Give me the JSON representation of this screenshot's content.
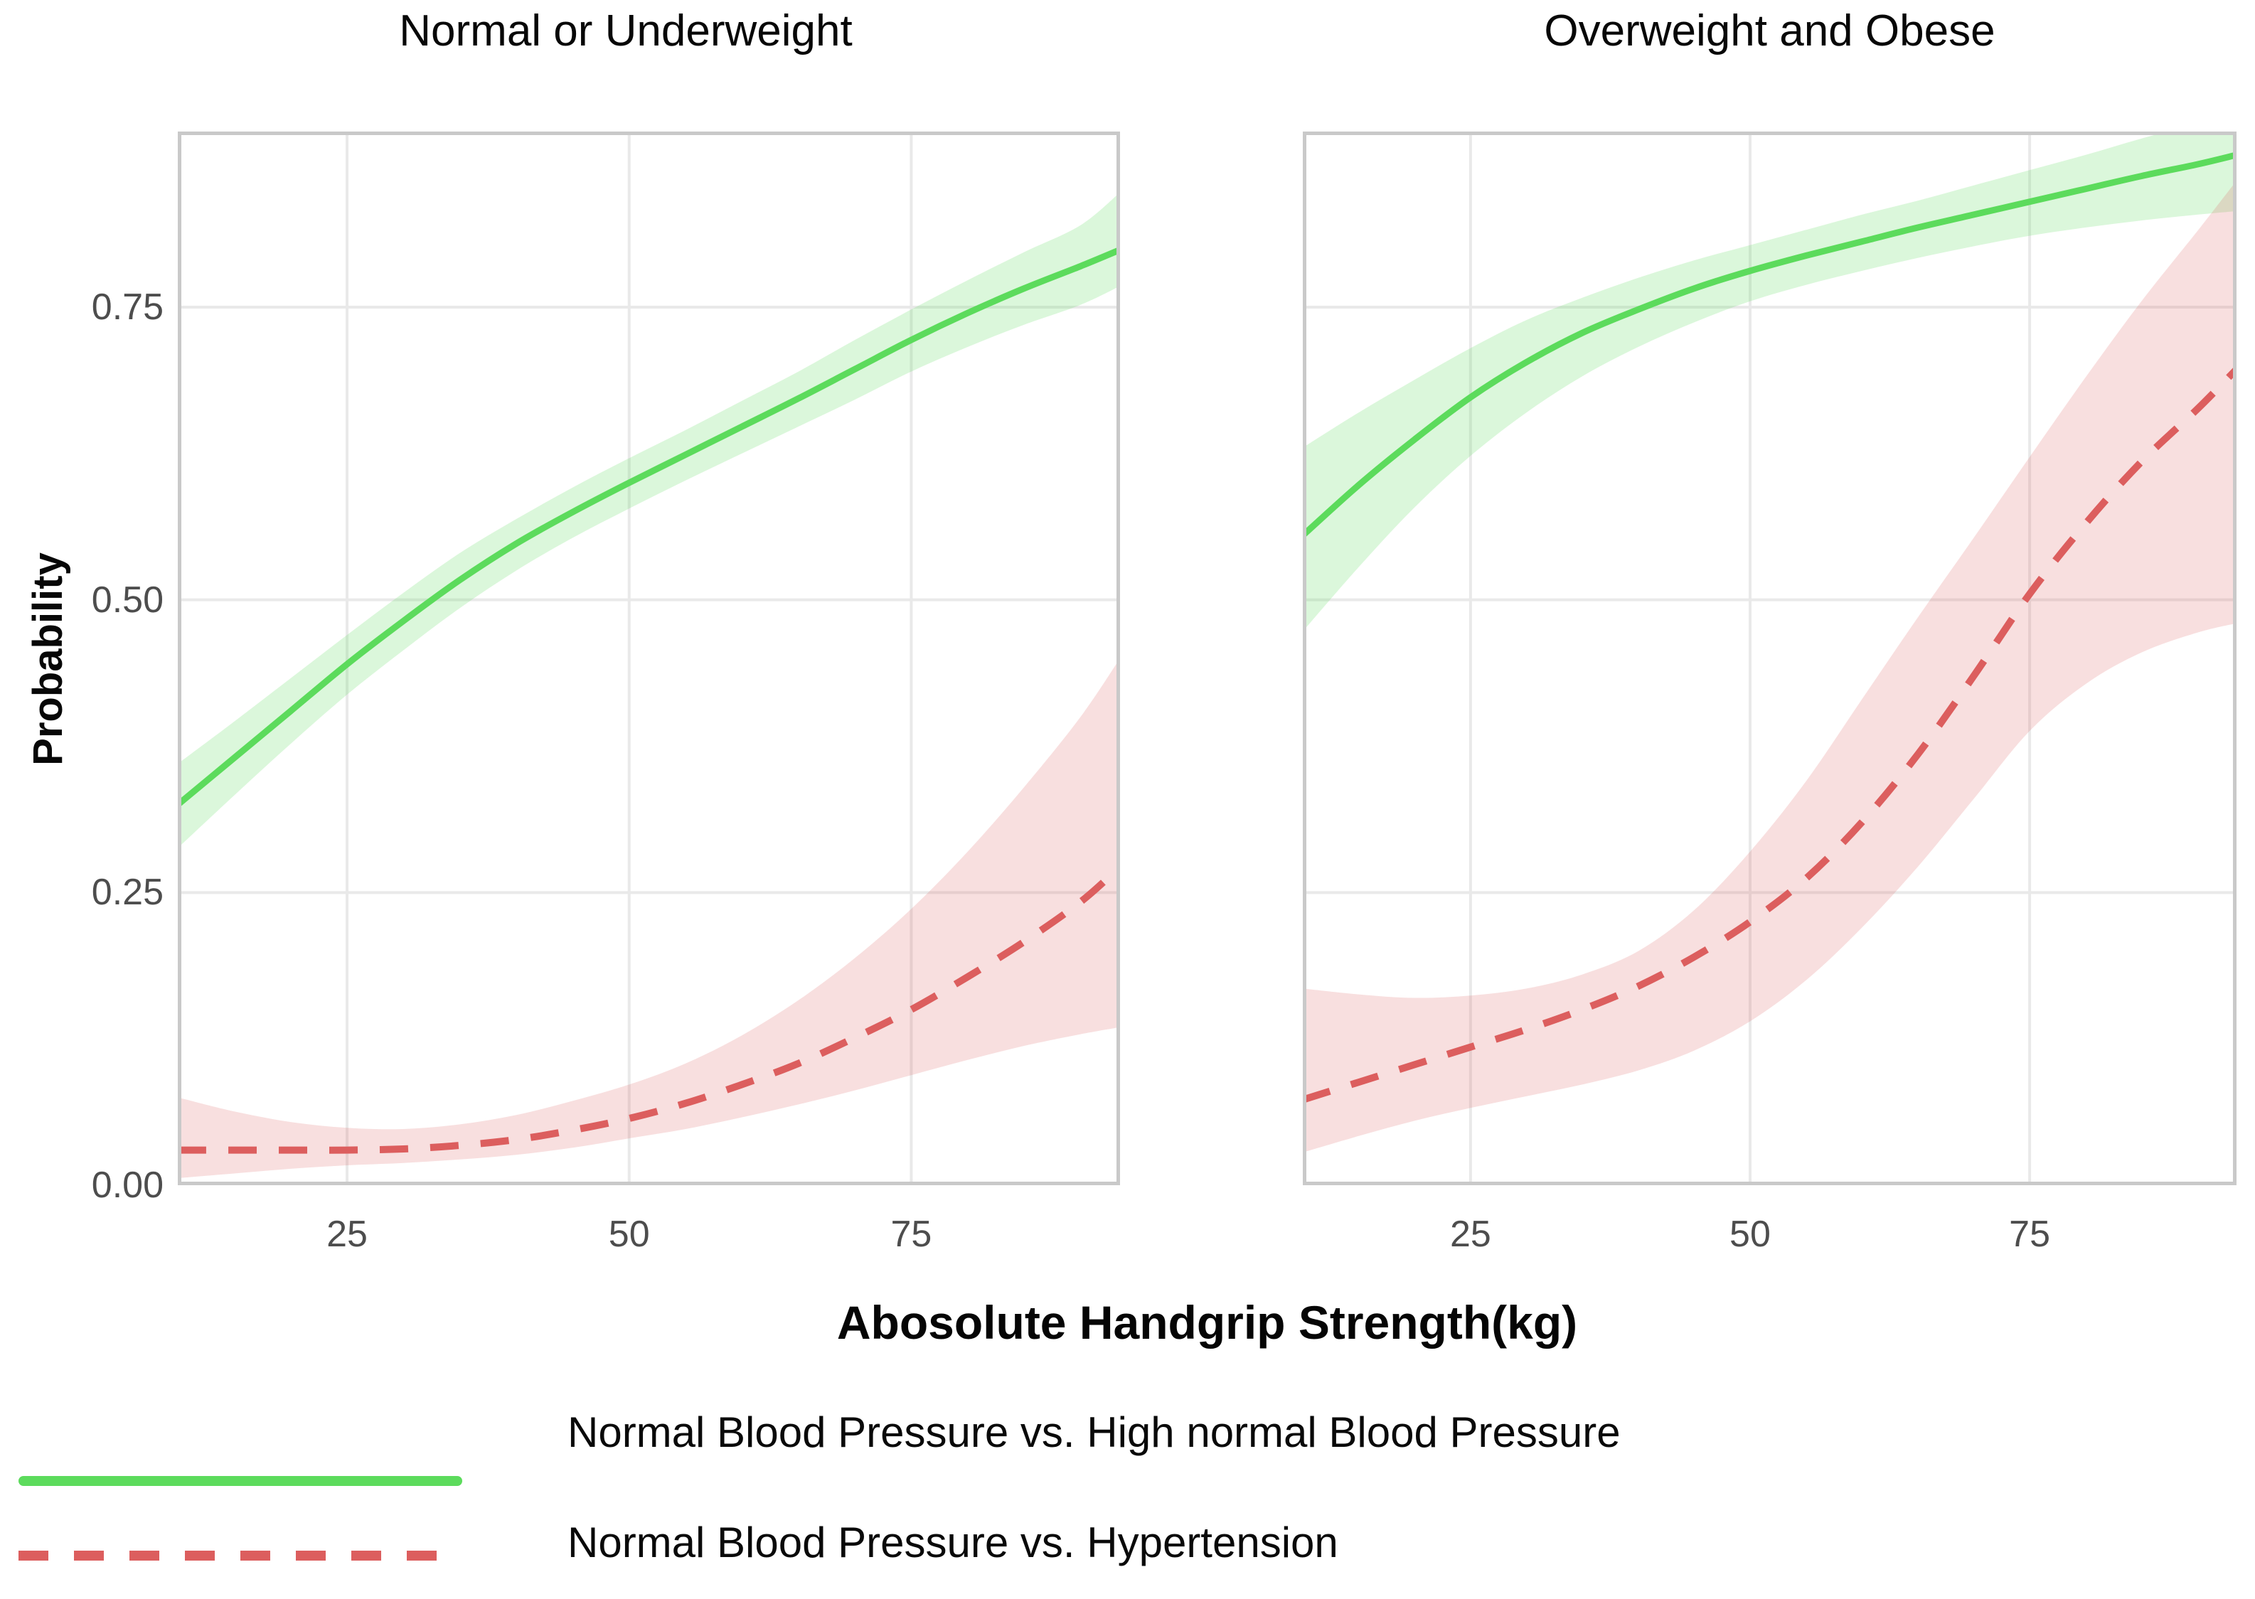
{
  "figure": {
    "panel_titles": [
      "Normal or Underweight",
      "Overweight and Obese"
    ],
    "y_axis": {
      "label": "Probability",
      "tick_labels": [
        "0.00",
        "0.25",
        "0.50",
        "0.75"
      ],
      "tick_values": [
        0,
        0.25,
        0.5,
        0.75
      ]
    },
    "x_axis": {
      "label": "Abosolute Handgrip Strength(kg)",
      "tick_labels": [
        "25",
        "50",
        "75"
      ],
      "tick_values": [
        25,
        50,
        75
      ]
    },
    "legend": {
      "items": [
        {
          "label": "Normal Blood Pressure vs. High normal Blood Pressure",
          "style": "solid",
          "color": "#5cdb5c"
        },
        {
          "label": "Normal Blood Pressure vs. Hypertension",
          "style": "dashed",
          "color": "#dc5e5e"
        }
      ]
    }
  },
  "colors": {
    "green_line": "#5cdb5c",
    "green_band": "rgba(92,219,92,0.22)",
    "red_line": "#dc5e5e",
    "red_band": "rgba(221,95,95,0.20)",
    "gridline": "#e9e9e9",
    "panel_border": "#c9c9c9",
    "tick_text": "#4d4d4d"
  },
  "chart_data": [
    {
      "type": "line",
      "title": "Normal or Underweight",
      "xlabel": "Abosolute Handgrip Strength(kg)",
      "ylabel": "Probability",
      "xlim": [
        10,
        93.5
      ],
      "ylim": [
        0,
        0.9
      ],
      "x_ticks": [
        25,
        50,
        75
      ],
      "y_ticks": [
        0,
        0.25,
        0.5,
        0.75
      ],
      "grid": true,
      "legend_position": "bottom-left",
      "x": [
        10,
        15,
        20,
        25,
        30,
        35,
        40,
        45,
        50,
        55,
        60,
        65,
        70,
        75,
        80,
        85,
        90,
        93.5
      ],
      "series": [
        {
          "name": "Normal Blood Pressure vs. High normal Blood Pressure",
          "style": "solid",
          "values": [
            0.325,
            0.365,
            0.405,
            0.445,
            0.482,
            0.517,
            0.548,
            0.575,
            0.6,
            0.624,
            0.648,
            0.672,
            0.697,
            0.722,
            0.745,
            0.766,
            0.785,
            0.799
          ],
          "ci_lower": [
            0.288,
            0.333,
            0.377,
            0.419,
            0.457,
            0.493,
            0.525,
            0.553,
            0.578,
            0.602,
            0.625,
            0.648,
            0.671,
            0.695,
            0.716,
            0.735,
            0.752,
            0.768
          ],
          "ci_upper": [
            0.36,
            0.396,
            0.433,
            0.47,
            0.506,
            0.54,
            0.569,
            0.596,
            0.621,
            0.645,
            0.67,
            0.695,
            0.722,
            0.748,
            0.773,
            0.797,
            0.82,
            0.848
          ]
        },
        {
          "name": "Normal Blood Pressure vs. Hypertension",
          "style": "dashed",
          "values": [
            0.03,
            0.03,
            0.03,
            0.03,
            0.031,
            0.034,
            0.039,
            0.047,
            0.057,
            0.07,
            0.086,
            0.104,
            0.126,
            0.15,
            0.178,
            0.208,
            0.242,
            0.272
          ],
          "ci_lower": [
            0.006,
            0.01,
            0.014,
            0.017,
            0.019,
            0.022,
            0.026,
            0.032,
            0.04,
            0.048,
            0.058,
            0.069,
            0.081,
            0.094,
            0.107,
            0.119,
            0.129,
            0.135
          ],
          "ci_upper": [
            0.075,
            0.063,
            0.054,
            0.049,
            0.048,
            0.052,
            0.06,
            0.072,
            0.086,
            0.104,
            0.128,
            0.158,
            0.194,
            0.236,
            0.285,
            0.34,
            0.4,
            0.45
          ]
        }
      ]
    },
    {
      "type": "line",
      "title": "Overweight and Obese",
      "xlabel": "Abosolute Handgrip Strength(kg)",
      "ylabel": "Probability",
      "xlim": [
        10,
        93.5
      ],
      "ylim": [
        0,
        0.9
      ],
      "x_ticks": [
        25,
        50,
        75
      ],
      "y_ticks": [
        0,
        0.25,
        0.5,
        0.75
      ],
      "grid": true,
      "x": [
        10,
        15,
        20,
        25,
        30,
        35,
        40,
        45,
        50,
        55,
        60,
        65,
        70,
        75,
        80,
        85,
        90,
        93.5
      ],
      "series": [
        {
          "name": "Normal Blood Pressure vs. High normal Blood Pressure",
          "style": "solid",
          "values": [
            0.555,
            0.598,
            0.637,
            0.673,
            0.703,
            0.728,
            0.748,
            0.766,
            0.781,
            0.794,
            0.806,
            0.818,
            0.829,
            0.84,
            0.851,
            0.862,
            0.872,
            0.88
          ],
          "ci_lower": [
            0.473,
            0.528,
            0.579,
            0.623,
            0.66,
            0.691,
            0.716,
            0.737,
            0.755,
            0.769,
            0.781,
            0.792,
            0.802,
            0.811,
            0.818,
            0.824,
            0.829,
            0.832
          ],
          "ci_upper": [
            0.63,
            0.66,
            0.688,
            0.715,
            0.739,
            0.758,
            0.775,
            0.79,
            0.803,
            0.816,
            0.829,
            0.841,
            0.854,
            0.867,
            0.88,
            0.894,
            0.907,
            0.916
          ]
        },
        {
          "name": "Normal Blood Pressure vs. Hypertension",
          "style": "dashed",
          "values": [
            0.073,
            0.088,
            0.103,
            0.118,
            0.133,
            0.15,
            0.17,
            0.195,
            0.225,
            0.262,
            0.31,
            0.368,
            0.435,
            0.505,
            0.565,
            0.618,
            0.663,
            0.697
          ],
          "ci_lower": [
            0.028,
            0.042,
            0.055,
            0.066,
            0.076,
            0.086,
            0.098,
            0.115,
            0.14,
            0.175,
            0.22,
            0.272,
            0.33,
            0.388,
            0.428,
            0.455,
            0.472,
            0.48
          ],
          "ci_upper": [
            0.168,
            0.163,
            0.16,
            0.162,
            0.168,
            0.18,
            0.2,
            0.235,
            0.285,
            0.345,
            0.415,
            0.485,
            0.553,
            0.622,
            0.69,
            0.755,
            0.815,
            0.858
          ]
        }
      ]
    }
  ]
}
